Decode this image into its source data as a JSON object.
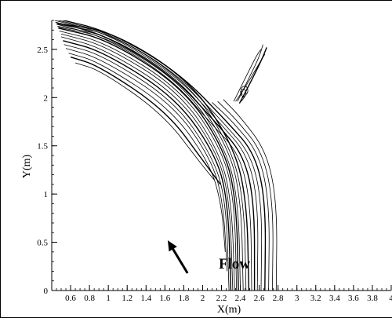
{
  "chart_data": {
    "type": "line",
    "xlabel": "X(m)",
    "ylabel": "Y(m)",
    "xlim": [
      0.4,
      4.0
    ],
    "ylim": [
      0,
      2.8
    ],
    "x_ticks": [
      "0.6",
      "0.8",
      "1",
      "1.2",
      "1.4",
      "1.6",
      "1.8",
      "2",
      "2.2",
      "2.4",
      "2.6",
      "2.8",
      "3",
      "3.2",
      "3.4",
      "3.6",
      "3.8",
      "4"
    ],
    "y_ticks": [
      "0",
      "0.5",
      "1",
      "1.5",
      "2",
      "2.5"
    ],
    "annotation": "Flow",
    "flow_arrow": {
      "from": [
        1.84,
        0.18
      ],
      "to": [
        1.63,
        0.52
      ]
    },
    "series": [
      {
        "values": [
          [
            2.38,
            0
          ],
          [
            2.36,
            0.9
          ],
          [
            2.24,
            1.45
          ],
          [
            1.8,
            2.1
          ],
          [
            1.0,
            2.6
          ],
          [
            0.47,
            2.72
          ]
        ]
      },
      {
        "values": [
          [
            2.4,
            0
          ],
          [
            2.38,
            0.9
          ],
          [
            2.26,
            1.45
          ],
          [
            1.82,
            2.12
          ],
          [
            1.02,
            2.62
          ],
          [
            0.47,
            2.73
          ]
        ]
      },
      {
        "values": [
          [
            2.43,
            0
          ],
          [
            2.41,
            0.9
          ],
          [
            2.29,
            1.46
          ],
          [
            1.84,
            2.13
          ],
          [
            1.03,
            2.64
          ],
          [
            0.46,
            2.74
          ]
        ]
      },
      {
        "values": [
          [
            2.46,
            0
          ],
          [
            2.44,
            0.9
          ],
          [
            2.31,
            1.47
          ],
          [
            1.86,
            2.15
          ],
          [
            1.05,
            2.66
          ],
          [
            0.46,
            2.76
          ]
        ]
      },
      {
        "values": [
          [
            2.49,
            0
          ],
          [
            2.47,
            0.9
          ],
          [
            2.34,
            1.48
          ],
          [
            1.88,
            2.17
          ],
          [
            1.06,
            2.68
          ],
          [
            0.46,
            2.77
          ]
        ]
      },
      {
        "values": [
          [
            2.36,
            0
          ],
          [
            2.34,
            0.9
          ],
          [
            2.22,
            1.44
          ],
          [
            1.78,
            2.08
          ],
          [
            0.98,
            2.57
          ],
          [
            0.48,
            2.69
          ]
        ]
      },
      {
        "values": [
          [
            2.34,
            0
          ],
          [
            2.31,
            0.9
          ],
          [
            2.19,
            1.42
          ],
          [
            1.76,
            2.06
          ],
          [
            0.97,
            2.54
          ],
          [
            0.5,
            2.66
          ]
        ]
      },
      {
        "values": [
          [
            2.32,
            0
          ],
          [
            2.29,
            0.9
          ],
          [
            2.17,
            1.41
          ],
          [
            1.74,
            2.03
          ],
          [
            0.95,
            2.51
          ],
          [
            0.5,
            2.63
          ]
        ]
      },
      {
        "values": [
          [
            2.3,
            0
          ],
          [
            2.27,
            0.9
          ],
          [
            2.15,
            1.39
          ],
          [
            1.72,
            2.0
          ],
          [
            0.94,
            2.48
          ],
          [
            0.52,
            2.59
          ]
        ]
      },
      {
        "values": [
          [
            2.28,
            0
          ],
          [
            2.25,
            0.9
          ],
          [
            2.12,
            1.37
          ],
          [
            1.7,
            1.97
          ],
          [
            0.92,
            2.45
          ],
          [
            0.53,
            2.55
          ]
        ]
      },
      {
        "values": [
          [
            2.26,
            0.2
          ],
          [
            2.22,
            0.9
          ],
          [
            2.1,
            1.35
          ],
          [
            1.68,
            1.94
          ],
          [
            0.91,
            2.41
          ],
          [
            0.55,
            2.51
          ]
        ]
      },
      {
        "values": [
          [
            2.24,
            0.4
          ],
          [
            2.2,
            0.9
          ],
          [
            2.07,
            1.33
          ],
          [
            1.65,
            1.9
          ],
          [
            0.9,
            2.37
          ],
          [
            0.58,
            2.46
          ]
        ]
      },
      {
        "values": [
          [
            2.19,
            1.1
          ],
          [
            2.03,
            1.31
          ],
          [
            1.62,
            1.86
          ],
          [
            0.9,
            2.33
          ],
          [
            0.6,
            2.42
          ]
        ]
      },
      {
        "values": [
          [
            2.12,
            1.15
          ],
          [
            1.97,
            1.33
          ],
          [
            1.58,
            1.83
          ],
          [
            0.92,
            2.28
          ],
          [
            0.65,
            2.36
          ]
        ]
      },
      {
        "values": [
          [
            2.58,
            0
          ],
          [
            2.59,
            0.9
          ],
          [
            2.48,
            1.4
          ],
          [
            2.2,
            1.72
          ],
          [
            1.7,
            2.25
          ],
          [
            0.98,
            2.67
          ],
          [
            0.43,
            2.8
          ]
        ]
      },
      {
        "values": [
          [
            2.62,
            0
          ],
          [
            2.63,
            0.9
          ],
          [
            2.52,
            1.4
          ],
          [
            2.24,
            1.72
          ],
          [
            1.72,
            2.26
          ],
          [
            0.99,
            2.68
          ],
          [
            0.43,
            2.81
          ]
        ]
      },
      {
        "values": [
          [
            2.66,
            0
          ],
          [
            2.67,
            0.9
          ],
          [
            2.56,
            1.41
          ],
          [
            2.28,
            1.73
          ],
          [
            1.74,
            2.27
          ],
          [
            1.0,
            2.69
          ],
          [
            0.44,
            2.82
          ]
        ]
      },
      {
        "values": [
          [
            2.7,
            0
          ],
          [
            2.71,
            0.9
          ],
          [
            2.6,
            1.42
          ],
          [
            2.32,
            1.75
          ],
          [
            2.1,
            1.95
          ]
        ]
      },
      {
        "values": [
          [
            2.74,
            0
          ],
          [
            2.75,
            0.9
          ],
          [
            2.64,
            1.43
          ],
          [
            2.36,
            1.77
          ],
          [
            2.16,
            1.96
          ]
        ]
      },
      {
        "values": [
          [
            2.78,
            0
          ],
          [
            2.79,
            0.9
          ],
          [
            2.68,
            1.44
          ],
          [
            2.4,
            1.8
          ],
          [
            2.22,
            1.98
          ]
        ]
      },
      {
        "values": [
          [
            2.55,
            0
          ],
          [
            2.55,
            0.9
          ],
          [
            2.44,
            1.39
          ],
          [
            2.18,
            1.7
          ],
          [
            1.68,
            2.23
          ],
          [
            0.97,
            2.65
          ],
          [
            0.44,
            2.78
          ]
        ]
      },
      {
        "values": [
          [
            2.52,
            0
          ],
          [
            2.51,
            0.9
          ],
          [
            2.39,
            1.42
          ],
          [
            2.1,
            1.72
          ],
          [
            1.66,
            2.21
          ],
          [
            0.96,
            2.63
          ],
          [
            0.45,
            2.76
          ]
        ]
      },
      {
        "values": [
          [
            2.33,
            1.96
          ],
          [
            2.45,
            2.2
          ],
          [
            2.58,
            2.45
          ],
          [
            2.62,
            2.5
          ]
        ]
      },
      {
        "values": [
          [
            2.37,
            1.96
          ],
          [
            2.48,
            2.18
          ],
          [
            2.6,
            2.42
          ],
          [
            2.64,
            2.55
          ]
        ]
      },
      {
        "values": [
          [
            2.39,
            1.94
          ],
          [
            2.52,
            2.18
          ],
          [
            2.63,
            2.4
          ],
          [
            2.68,
            2.52
          ]
        ]
      },
      {
        "values": [
          [
            2.35,
            1.96
          ],
          [
            2.46,
            2.12
          ],
          [
            2.58,
            2.32
          ],
          [
            2.66,
            2.45
          ]
        ]
      },
      {
        "values": [
          [
            2.41,
            1.96
          ],
          [
            2.47,
            2.04
          ],
          [
            2.44,
            2.1
          ],
          [
            2.39,
            2.06
          ],
          [
            2.43,
            2.0
          ]
        ]
      },
      {
        "values": [
          [
            2.43,
            2.0
          ],
          [
            2.49,
            2.06
          ],
          [
            2.46,
            2.13
          ],
          [
            2.4,
            2.1
          ],
          [
            2.42,
            2.03
          ]
        ]
      }
    ]
  }
}
